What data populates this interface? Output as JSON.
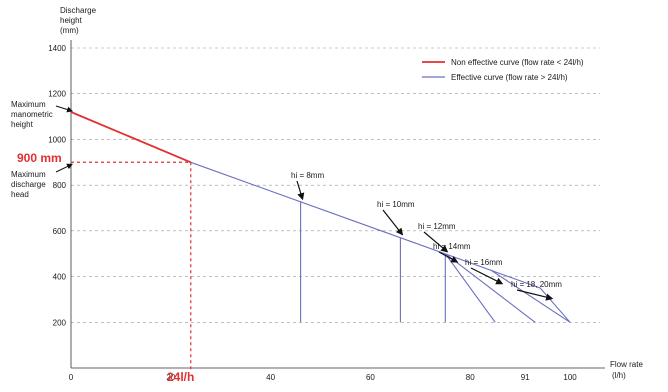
{
  "chart_data": {
    "type": "line",
    "ylabel": [
      "Discharge",
      "height",
      "(mm)"
    ],
    "xlabel": [
      "Flow rate",
      "(l/h)"
    ],
    "ylim": [
      0,
      1400
    ],
    "xlim": [
      0,
      106
    ],
    "y_ticks": [
      "1400",
      "1200",
      "1000",
      "800",
      "600",
      "400",
      "200"
    ],
    "y_tick_values": [
      1400,
      1200,
      1000,
      800,
      600,
      400,
      200
    ],
    "x_ticks": [
      "0",
      "20",
      "40",
      "60",
      "80",
      "91",
      "100"
    ],
    "x_tick_values": [
      0,
      20,
      40,
      60,
      80,
      91,
      100
    ],
    "grid": "horizontal dashed",
    "legend_position": "top-right",
    "colors": {
      "non_effective": "#e03030",
      "effective": "#6b6fbf",
      "highlight": "#e03030",
      "grid": "#999999",
      "axis": "#333333"
    },
    "series": [
      {
        "name": "Non effective curve (flow rate < 24l/h)",
        "color": "#e03030",
        "points": [
          [
            0,
            1120
          ],
          [
            24,
            900
          ]
        ]
      },
      {
        "name": "Effective curve (flow rate > 24l/h)",
        "color": "#6b6fbf",
        "points": [
          [
            24,
            900
          ],
          [
            94,
            350
          ],
          [
            100,
            200
          ]
        ]
      }
    ],
    "branches": [
      {
        "points": [
          [
            46,
            730
          ],
          [
            46,
            200
          ]
        ]
      },
      {
        "points": [
          [
            66,
            570
          ],
          [
            66,
            200
          ]
        ]
      },
      {
        "points": [
          [
            75,
            500
          ],
          [
            75,
            200
          ]
        ]
      },
      {
        "points": [
          [
            75,
            500
          ],
          [
            85,
            200
          ]
        ]
      },
      {
        "points": [
          [
            75,
            500
          ],
          [
            93,
            200
          ]
        ]
      },
      {
        "points": [
          [
            84,
            430
          ],
          [
            100,
            200
          ]
        ]
      }
    ],
    "annotations": {
      "max_manometric": {
        "lines": [
          "Maximum",
          "manometric",
          "height"
        ],
        "point": [
          0,
          1120
        ]
      },
      "max_discharge": {
        "lines": [
          "Maximum",
          "discharge",
          "head"
        ],
        "point": [
          0,
          900
        ]
      },
      "highlight_y_label": "900 mm",
      "highlight_x_label": "24l/h",
      "highlight_x": 24,
      "highlight_y": 900,
      "hi_labels": [
        {
          "text": "hi = 8mm",
          "point": [
            46,
            730
          ]
        },
        {
          "text": "hi = 10mm",
          "point": [
            66,
            575
          ]
        },
        {
          "text": "hi = 12mm",
          "point": [
            75,
            500
          ]
        },
        {
          "text": "hi = 14mm",
          "point": [
            77,
            455
          ]
        },
        {
          "text": "hi = 16mm",
          "point": [
            86,
            360
          ]
        },
        {
          "text": "hi = 18, 20mm",
          "point": [
            96,
            295
          ]
        }
      ]
    }
  }
}
